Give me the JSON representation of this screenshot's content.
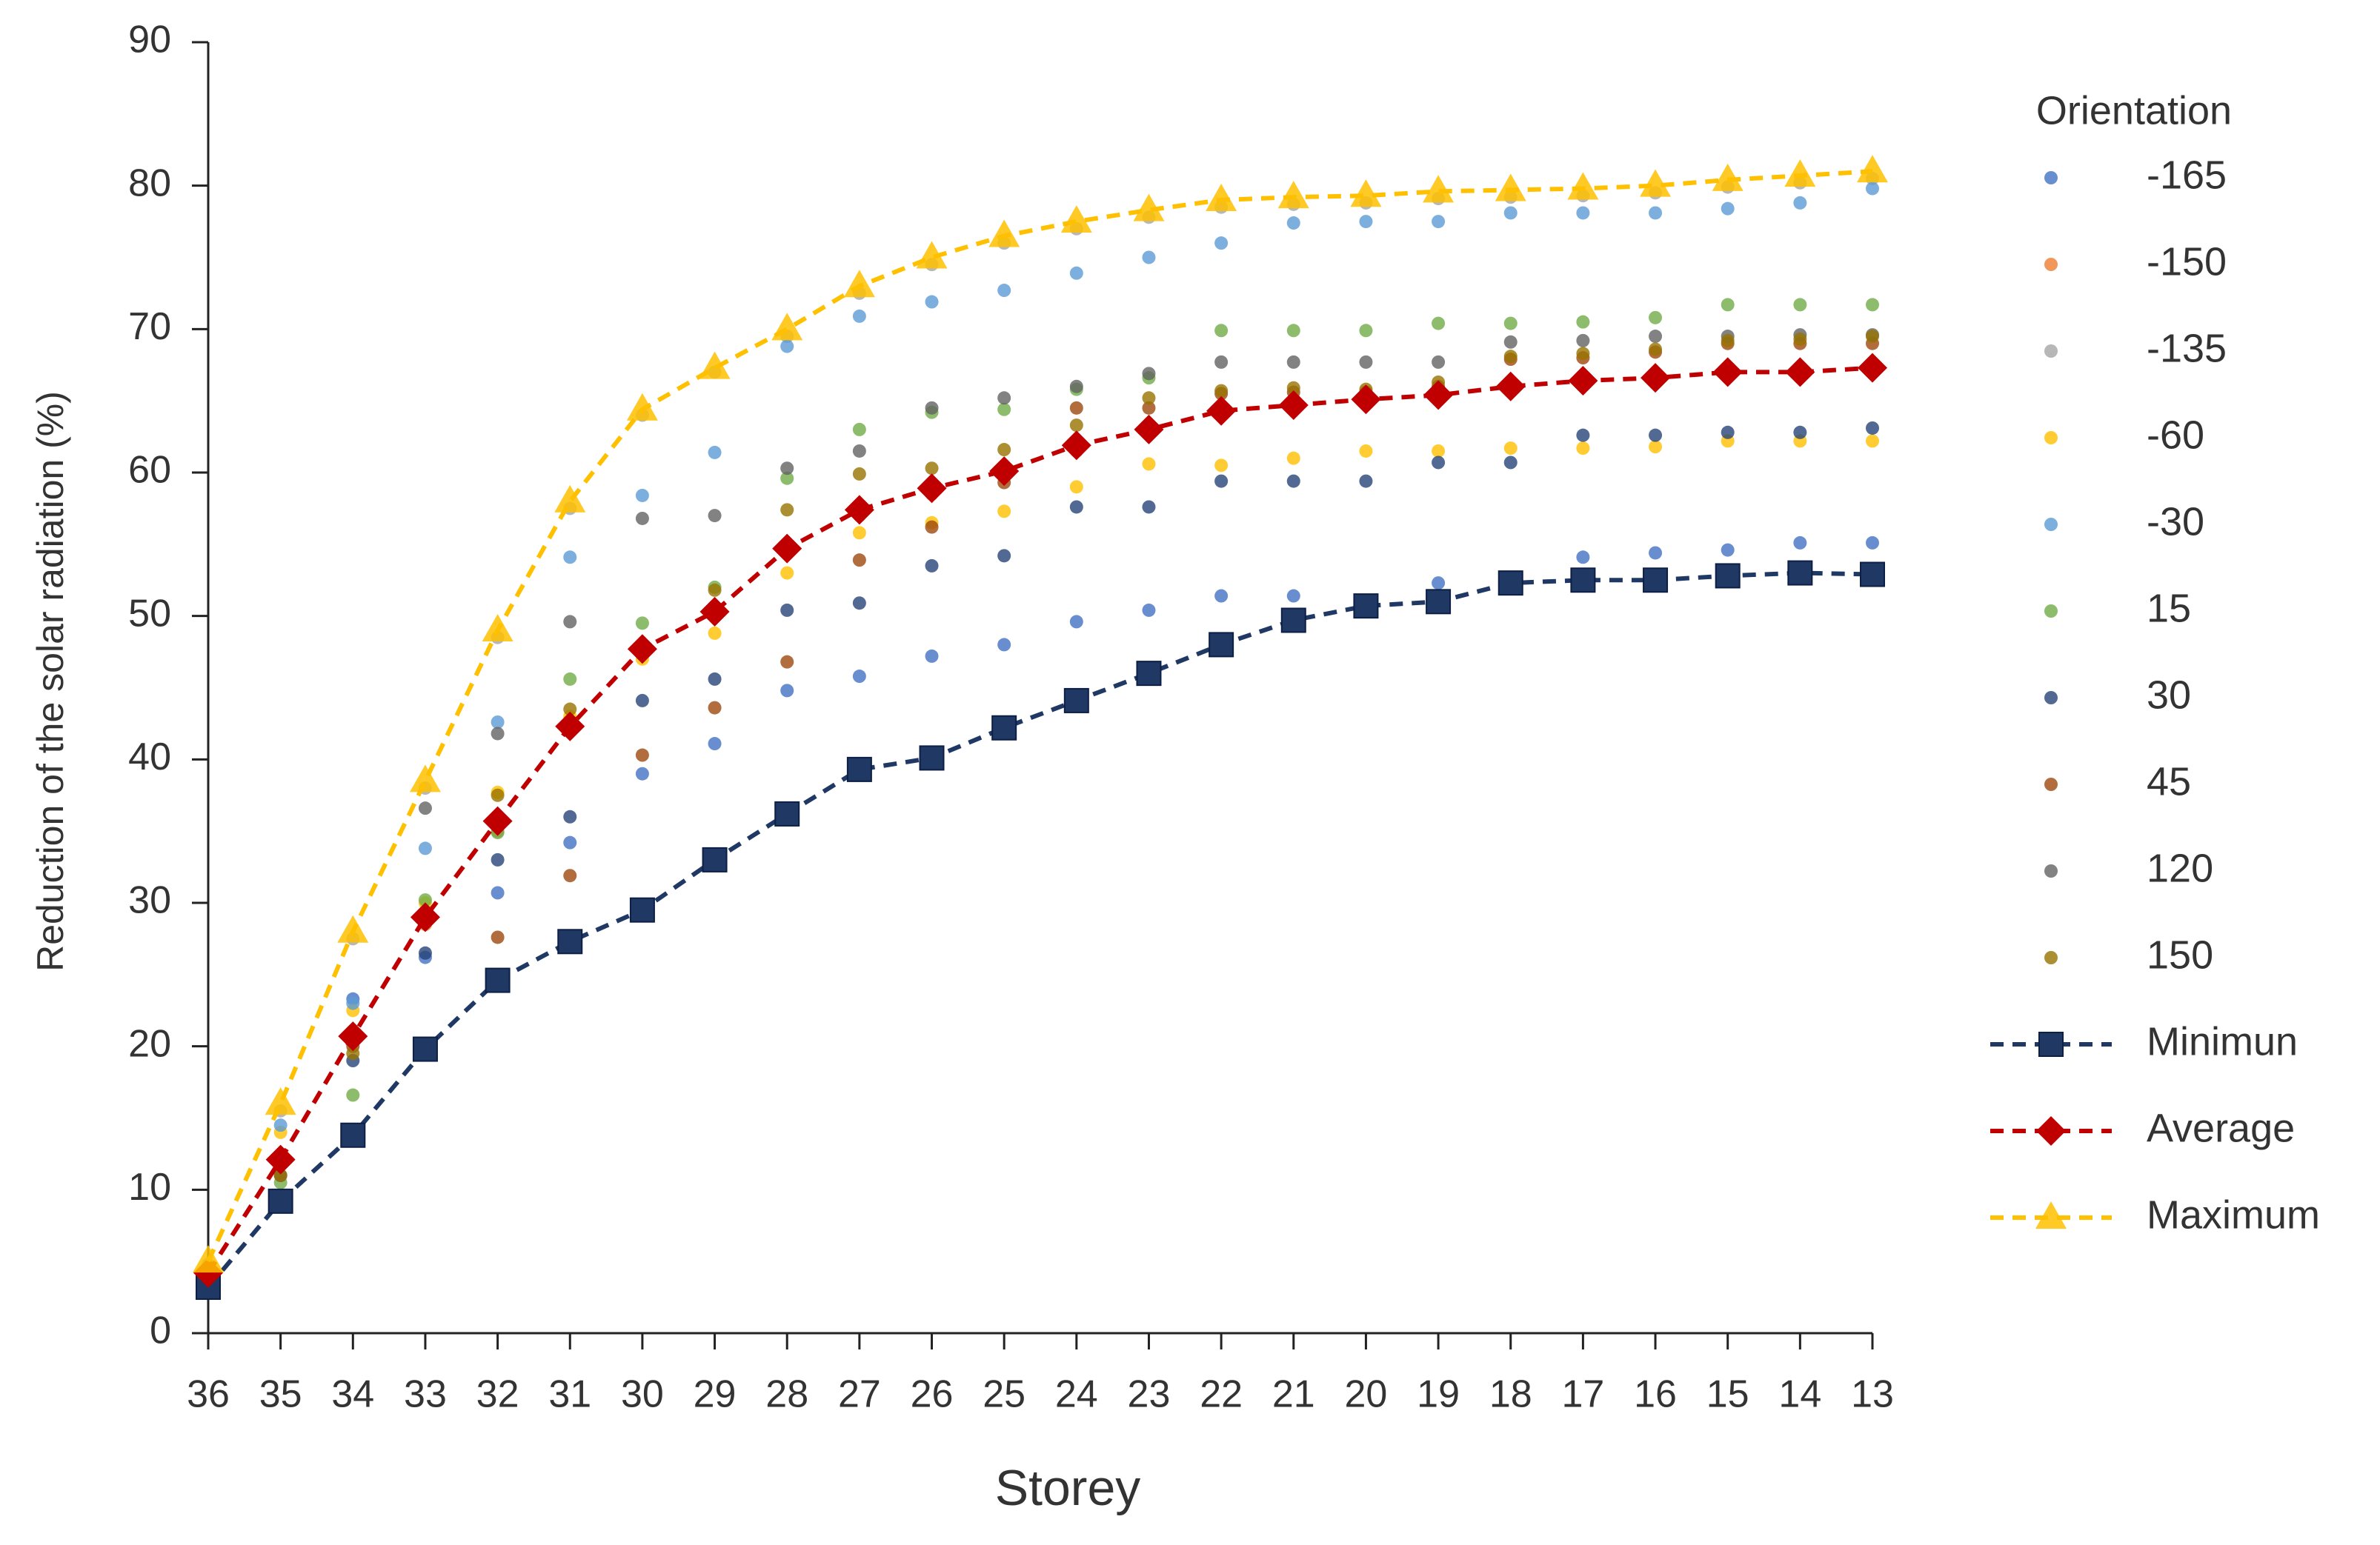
{
  "chart_data": {
    "type": "line",
    "x_label": "Storey",
    "y_label": "Reduction of the solar radiation (%)",
    "legend_title": "Orientation",
    "categories": [
      "36",
      "35",
      "34",
      "33",
      "32",
      "31",
      "30",
      "29",
      "28",
      "27",
      "26",
      "25",
      "24",
      "23",
      "22",
      "21",
      "20",
      "19",
      "18",
      "17",
      "16",
      "15",
      "14",
      "13"
    ],
    "ylim": [
      0,
      90
    ],
    "yticks": [
      0,
      10,
      20,
      30,
      40,
      50,
      60,
      70,
      80,
      90
    ],
    "legend": "right",
    "series": [
      {
        "name": "-165",
        "color": "#4472c4",
        "mode": "markers",
        "values": [
          3.5,
          9.5,
          23.3,
          26.2,
          30.7,
          34.2,
          39,
          41.1,
          44.8,
          45.8,
          47.2,
          48,
          49.6,
          50.4,
          51.4,
          51.4,
          51,
          52.3,
          52.5,
          54.1,
          54.4,
          54.6,
          55.1,
          55.1
        ]
      },
      {
        "name": "-150",
        "color": "#ed7d31",
        "mode": "markers",
        "values": [
          4,
          12,
          20.5,
          28.5,
          35,
          42,
          47.5,
          50,
          54.5,
          57,
          58.5,
          60,
          61.5,
          62.8,
          64,
          64.5,
          65,
          65.2,
          65.8,
          66.2,
          66.5,
          66.8,
          66.8,
          67
        ]
      },
      {
        "name": "-135",
        "color": "#a5a5a5",
        "mode": "markers",
        "values": [
          4.8,
          15.5,
          27.5,
          38,
          48.5,
          57.5,
          64,
          67,
          69.5,
          72.5,
          74.5,
          76,
          77,
          77.8,
          78.5,
          78.7,
          78.8,
          79.1,
          79.2,
          79.3,
          79.5,
          79.9,
          80.2,
          80.5
        ]
      },
      {
        "name": "-60",
        "color": "#ffc000",
        "mode": "markers",
        "values": [
          4,
          14,
          22.5,
          30,
          37.7,
          43,
          47,
          48.8,
          53,
          55.8,
          56.5,
          57.3,
          59,
          60.6,
          60.5,
          61,
          61.5,
          61.5,
          61.7,
          61.7,
          61.8,
          62.2,
          62.2,
          62.2
        ]
      },
      {
        "name": "-30",
        "color": "#5b9bd5",
        "mode": "markers",
        "values": [
          4.5,
          14.5,
          23,
          33.8,
          42.6,
          54.1,
          58.4,
          61.4,
          68.8,
          70.9,
          71.9,
          72.7,
          73.9,
          75,
          76,
          77.4,
          77.5,
          77.5,
          78.1,
          78.1,
          78.1,
          78.4,
          78.8,
          79.8
        ]
      },
      {
        "name": "15",
        "color": "#70ad47",
        "mode": "markers",
        "values": [
          4,
          10.5,
          16.6,
          30.2,
          34.9,
          45.6,
          49.5,
          52,
          59.6,
          63,
          64.2,
          64.4,
          65.8,
          66.6,
          69.9,
          69.9,
          69.9,
          70.4,
          70.4,
          70.5,
          70.8,
          71.7,
          71.7,
          71.7
        ]
      },
      {
        "name": "30",
        "color": "#264478",
        "mode": "markers",
        "values": [
          3.5,
          9.5,
          19,
          26.5,
          33,
          36,
          44.1,
          45.6,
          50.4,
          50.9,
          53.5,
          54.2,
          57.6,
          57.6,
          59.4,
          59.4,
          59.4,
          60.7,
          60.7,
          62.6,
          62.6,
          62.8,
          62.8,
          63.1
        ]
      },
      {
        "name": "45",
        "color": "#9e480e",
        "mode": "markers",
        "values": [
          4,
          11,
          20,
          29,
          27.6,
          31.9,
          40.3,
          43.6,
          46.8,
          53.9,
          56.2,
          59.3,
          64.5,
          64.5,
          65.5,
          65.6,
          65.6,
          66,
          67.9,
          68,
          68.4,
          69,
          69,
          69
        ]
      },
      {
        "name": "120",
        "color": "#636363",
        "mode": "markers",
        "values": [
          4,
          11,
          20.5,
          36.6,
          41.8,
          49.6,
          56.8,
          57,
          60.3,
          61.5,
          64.5,
          65.2,
          66,
          66.9,
          67.7,
          67.7,
          67.7,
          67.7,
          69.1,
          69.2,
          69.5,
          69.5,
          69.6,
          69.6
        ]
      },
      {
        "name": "150",
        "color": "#997300",
        "mode": "markers",
        "values": [
          4,
          11,
          19.5,
          29,
          37.5,
          43.5,
          47.5,
          51.8,
          57.4,
          59.9,
          60.3,
          61.6,
          63.3,
          65.2,
          65.7,
          65.9,
          65.8,
          66.3,
          68.1,
          68.3,
          68.6,
          69.2,
          69.3,
          69.5
        ]
      },
      {
        "name": "Minimun",
        "color": "#1f3864",
        "mode": "lines+markers",
        "marker": "square",
        "dash": true,
        "values": [
          3.2,
          9.2,
          13.8,
          19.8,
          24.6,
          27.3,
          29.5,
          33,
          36.2,
          39.3,
          40.1,
          42.2,
          44.1,
          46,
          48,
          49.7,
          50.7,
          51,
          52.3,
          52.5,
          52.5,
          52.8,
          53,
          52.9
        ]
      },
      {
        "name": "Average",
        "color": "#c00000",
        "mode": "lines+markers",
        "marker": "diamond",
        "dash": true,
        "values": [
          4.2,
          12.1,
          20.7,
          29,
          35.7,
          42.3,
          47.7,
          50.3,
          54.7,
          57.4,
          58.9,
          60.1,
          61.9,
          63,
          64.3,
          64.7,
          65.1,
          65.4,
          66,
          66.4,
          66.6,
          67,
          67,
          67.3
        ]
      },
      {
        "name": "Maximum",
        "color": "#ffc000",
        "mode": "lines+markers",
        "marker": "triangle",
        "dash": true,
        "values": [
          5,
          16,
          28,
          38.5,
          49,
          58,
          64.4,
          67.3,
          70,
          73,
          75,
          76.5,
          77.5,
          78.3,
          79,
          79.2,
          79.3,
          79.6,
          79.7,
          79.8,
          80,
          80.4,
          80.7,
          81
        ]
      }
    ]
  }
}
